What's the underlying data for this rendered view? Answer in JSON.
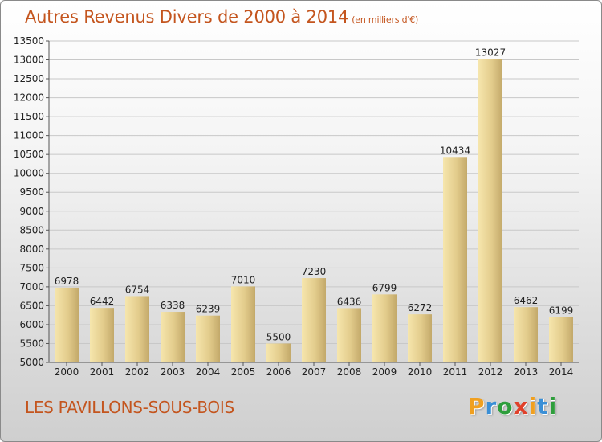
{
  "title": "Autres Revenus Divers de 2000 à 2014",
  "title_unit": "(en milliers d'€)",
  "location": "LES PAVILLONS-SOUS-BOIS",
  "logo_text": "Proxiti",
  "colors": {
    "title": "#c4551e",
    "bar_light": "#f4e3a6",
    "bar_dark": "#c9b071",
    "logo_letters": [
      "#f0a020",
      "#3a8fd6",
      "#2e9e3c",
      "#e0402a",
      "#f0a020",
      "#3a8fd6",
      "#2e9e3c"
    ]
  },
  "chart_data": {
    "type": "bar",
    "title": "Autres Revenus Divers de 2000 à 2014",
    "xlabel": "",
    "ylabel": "",
    "categories": [
      "2000",
      "2001",
      "2002",
      "2003",
      "2004",
      "2005",
      "2006",
      "2007",
      "2008",
      "2009",
      "2010",
      "2011",
      "2012",
      "2013",
      "2014"
    ],
    "values": [
      6978,
      6442,
      6754,
      6338,
      6239,
      7010,
      5500,
      7230,
      6436,
      6799,
      6272,
      10434,
      13027,
      6462,
      6199
    ],
    "ylim": [
      5000,
      13500
    ],
    "yticks": [
      5000,
      5500,
      6000,
      6500,
      7000,
      7500,
      8000,
      8500,
      9000,
      9500,
      10000,
      10500,
      11000,
      11500,
      12000,
      12500,
      13000,
      13500
    ],
    "grid": true,
    "data_labels": true
  }
}
